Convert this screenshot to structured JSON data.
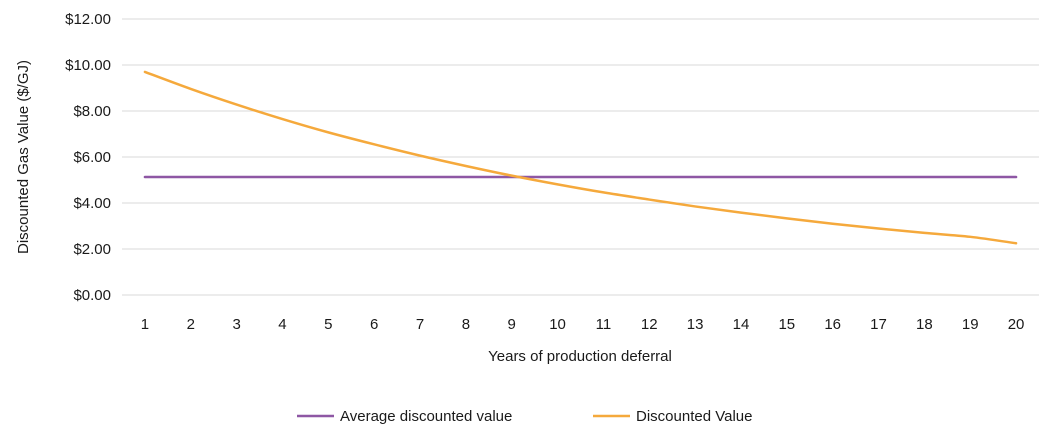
{
  "chart_data": {
    "type": "line",
    "xlabel": "Years of production deferral",
    "ylabel": "Discounted  Gas  Value ($/GJ)",
    "categories": [
      "1",
      "2",
      "3",
      "4",
      "5",
      "6",
      "7",
      "8",
      "9",
      "10",
      "11",
      "12",
      "13",
      "14",
      "15",
      "16",
      "17",
      "18",
      "19",
      "20"
    ],
    "yticks": [
      "$0.00",
      "$2.00",
      "$4.00",
      "$6.00",
      "$8.00",
      "$10.00",
      "$12.00"
    ],
    "ylim": [
      0,
      12
    ],
    "grid": true,
    "legend_position": "bottom",
    "series": [
      {
        "name": "Average discounted value",
        "color": "#8e57a4",
        "values": [
          5.13,
          5.13,
          5.13,
          5.13,
          5.13,
          5.13,
          5.13,
          5.13,
          5.13,
          5.13,
          5.13,
          5.13,
          5.13,
          5.13,
          5.13,
          5.13,
          5.13,
          5.13,
          5.13,
          5.13
        ]
      },
      {
        "name": "Discounted Value",
        "color": "#f5a93c",
        "values": [
          9.7,
          8.96,
          8.28,
          7.65,
          7.07,
          6.55,
          6.06,
          5.61,
          5.19,
          4.81,
          4.46,
          4.15,
          3.85,
          3.58,
          3.33,
          3.1,
          2.89,
          2.7,
          2.53,
          2.25
        ]
      }
    ]
  }
}
